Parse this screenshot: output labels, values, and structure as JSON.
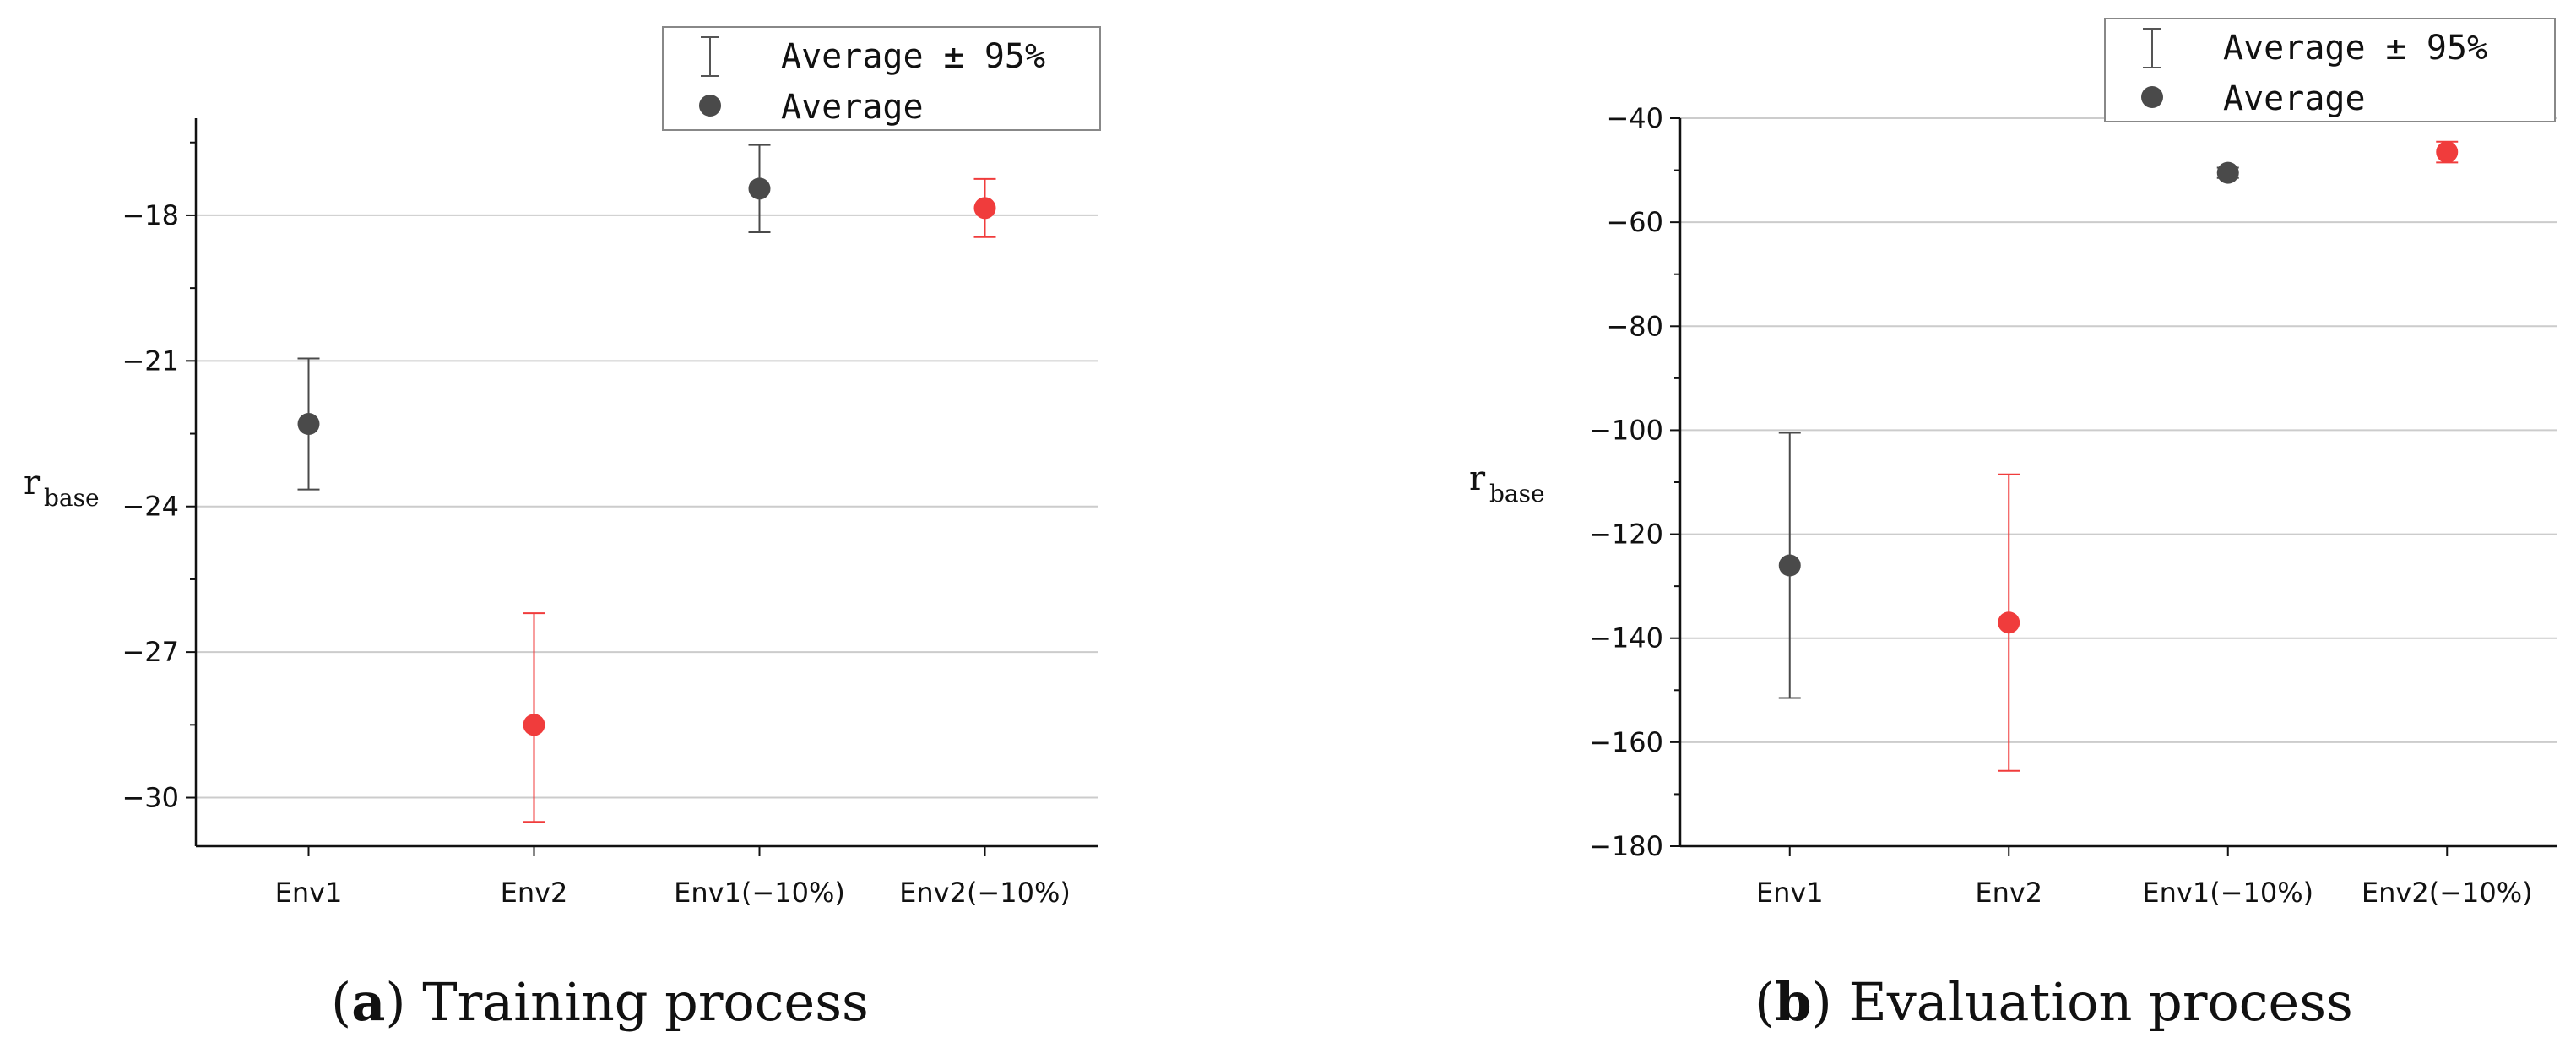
{
  "chart_data": [
    {
      "type": "scatter",
      "caption_letter": "a",
      "caption_text": "Training process",
      "ylabel_main": "r",
      "ylabel_sub": "base",
      "ylim": [
        -31,
        -16
      ],
      "yticks": [
        -30,
        -27,
        -24,
        -21,
        -18
      ],
      "ytick_labels": [
        "−30",
        "−27",
        "−24",
        "−21",
        "−18"
      ],
      "grid": true,
      "categories": [
        "Env1",
        "Env2",
        "Env1(−10%)",
        "Env2(−10%)"
      ],
      "series": [
        {
          "name": "Env1",
          "color": "#4a4a4a",
          "mean": -22.3,
          "lower": -23.65,
          "upper": -20.95
        },
        {
          "name": "Env2",
          "color": "#f03c3c",
          "mean": -28.5,
          "lower": -30.5,
          "upper": -26.2
        },
        {
          "name": "Env1(−10%)",
          "color": "#4a4a4a",
          "mean": -17.45,
          "lower": -18.35,
          "upper": -16.55
        },
        {
          "name": "Env2(−10%)",
          "color": "#f03c3c",
          "mean": -17.85,
          "lower": -18.45,
          "upper": -17.25
        }
      ],
      "legend": {
        "position": "top-right",
        "items": [
          "Average ± 95%",
          "Average"
        ]
      }
    },
    {
      "type": "scatter",
      "caption_letter": "b",
      "caption_text": "Evaluation process",
      "ylabel_main": "r",
      "ylabel_sub": "base",
      "ylim": [
        -180,
        -40
      ],
      "yticks": [
        -180,
        -160,
        -140,
        -120,
        -100,
        -80,
        -60,
        -40
      ],
      "ytick_labels": [
        "−180",
        "−160",
        "−140",
        "−120",
        "−100",
        "−80",
        "−60",
        "−40"
      ],
      "grid": true,
      "categories": [
        "Env1",
        "Env2",
        "Env1(−10%)",
        "Env2(−10%)"
      ],
      "series": [
        {
          "name": "Env1",
          "color": "#4a4a4a",
          "mean": -126,
          "lower": -151.5,
          "upper": -100.5
        },
        {
          "name": "Env2",
          "color": "#f03c3c",
          "mean": -137,
          "lower": -165.5,
          "upper": -108.5
        },
        {
          "name": "Env1(−10%)",
          "color": "#4a4a4a",
          "mean": -50.5,
          "lower": -51.5,
          "upper": -49.5
        },
        {
          "name": "Env2(−10%)",
          "color": "#f03c3c",
          "mean": -46.5,
          "lower": -48.5,
          "upper": -44.5
        }
      ],
      "legend": {
        "position": "top-right",
        "items": [
          "Average ± 95%",
          "Average"
        ]
      }
    }
  ]
}
